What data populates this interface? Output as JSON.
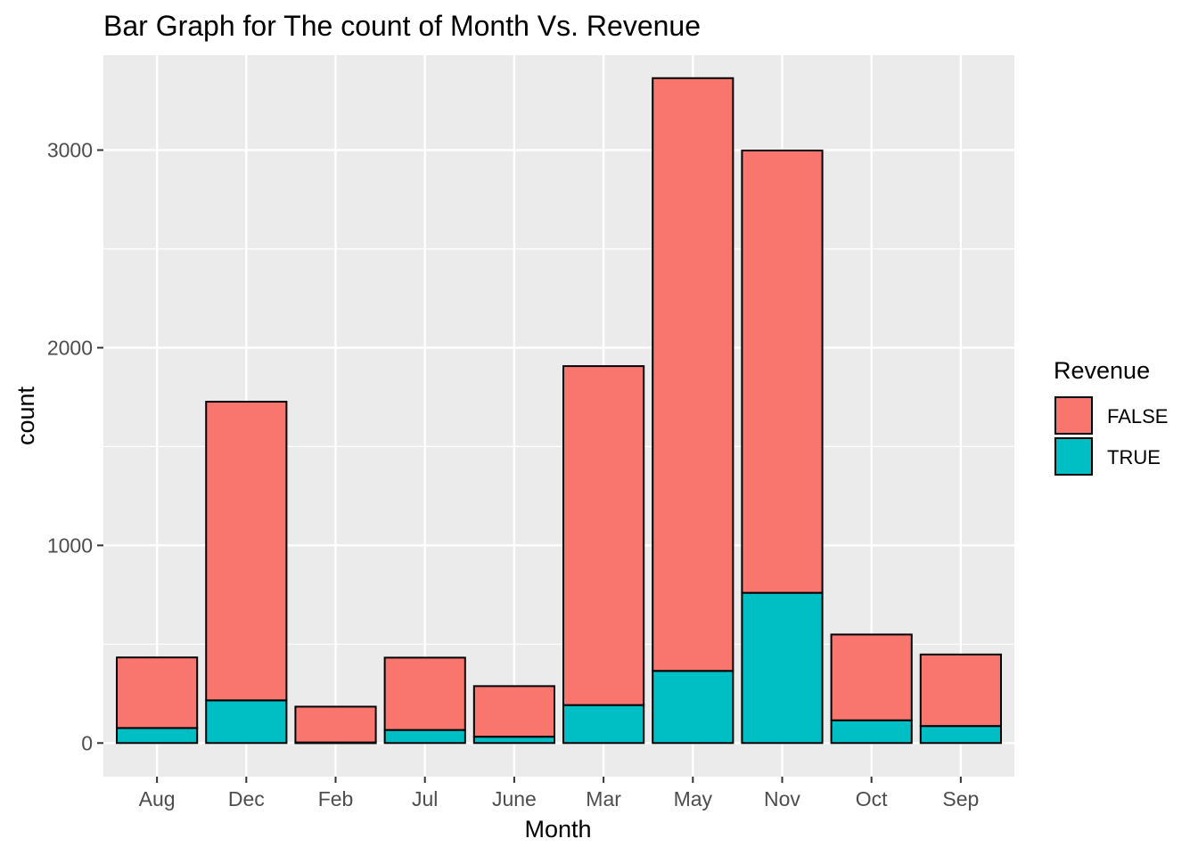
{
  "chart_data": {
    "type": "bar",
    "stacked": true,
    "title": "Bar Graph for The count of Month Vs. Revenue",
    "xlabel": "Month",
    "ylabel": "count",
    "categories": [
      "Aug",
      "Dec",
      "Feb",
      "Jul",
      "June",
      "Mar",
      "May",
      "Nov",
      "Oct",
      "Sep"
    ],
    "series": [
      {
        "name": "FALSE",
        "color": "#F8766D",
        "values": [
          357,
          1511,
          181,
          366,
          256,
          1715,
          2999,
          2238,
          434,
          362
        ]
      },
      {
        "name": "TRUE",
        "color": "#00BFC4",
        "values": [
          76,
          216,
          3,
          66,
          32,
          192,
          365,
          760,
          115,
          86
        ]
      }
    ],
    "ylim": [
      -170,
      3480
    ],
    "yticks": [
      0,
      1000,
      2000,
      3000
    ],
    "grid": true,
    "panel_background": "#EBEBEB",
    "legend": {
      "title": "Revenue",
      "position": "right",
      "entries": [
        "FALSE",
        "TRUE"
      ]
    }
  }
}
